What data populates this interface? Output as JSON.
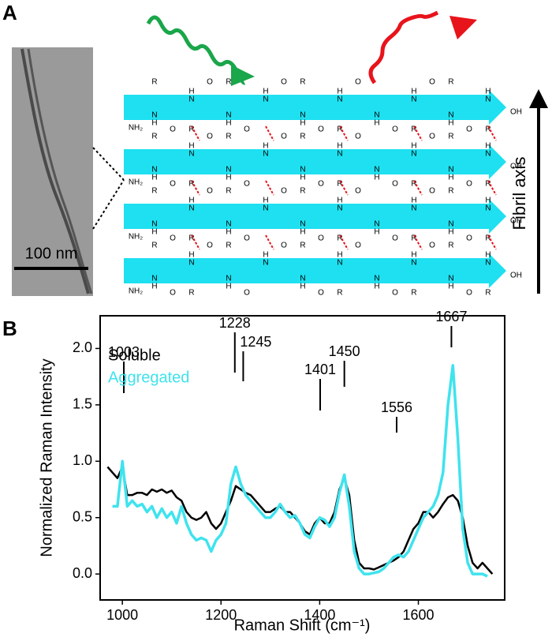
{
  "panel_labels": [
    "A",
    "B"
  ],
  "panel_a": {
    "scale_bar": "100 nm",
    "axis_label": "Fibril axis",
    "atoms": {
      "carbonyl": "O",
      "side_chain": "R",
      "amide_h": "H",
      "amide_n": "N",
      "n_terminus": "NH₂",
      "c_terminus": "OH"
    }
  },
  "chart_data": {
    "type": "line",
    "xlabel": "Raman Shift (cm⁻¹)",
    "ylabel": "Normalized Raman Intensity",
    "x": [
      970,
      980,
      990,
      1000,
      1010,
      1020,
      1030,
      1040,
      1050,
      1060,
      1070,
      1080,
      1090,
      1100,
      1110,
      1120,
      1130,
      1140,
      1150,
      1160,
      1170,
      1180,
      1190,
      1200,
      1210,
      1220,
      1230,
      1240,
      1250,
      1260,
      1270,
      1280,
      1290,
      1300,
      1310,
      1320,
      1330,
      1340,
      1350,
      1360,
      1370,
      1380,
      1390,
      1400,
      1410,
      1420,
      1430,
      1440,
      1450,
      1460,
      1470,
      1480,
      1490,
      1500,
      1510,
      1520,
      1530,
      1540,
      1550,
      1560,
      1570,
      1580,
      1590,
      1600,
      1610,
      1620,
      1630,
      1640,
      1650,
      1660,
      1670,
      1680,
      1690,
      1700,
      1710,
      1720,
      1730,
      1740,
      1750
    ],
    "series": [
      {
        "name": "Soluble",
        "color": "#000000",
        "values": [
          0.95,
          0.9,
          0.85,
          0.95,
          0.7,
          0.7,
          0.72,
          0.72,
          0.7,
          0.75,
          0.73,
          0.75,
          0.72,
          0.74,
          0.68,
          0.65,
          0.55,
          0.5,
          0.48,
          0.5,
          0.55,
          0.45,
          0.4,
          0.45,
          0.55,
          0.65,
          0.78,
          0.75,
          0.72,
          0.7,
          0.65,
          0.6,
          0.55,
          0.55,
          0.58,
          0.6,
          0.55,
          0.55,
          0.5,
          0.45,
          0.38,
          0.35,
          0.45,
          0.5,
          0.45,
          0.45,
          0.55,
          0.75,
          0.85,
          0.7,
          0.3,
          0.1,
          0.05,
          0.05,
          0.04,
          0.06,
          0.08,
          0.1,
          0.12,
          0.15,
          0.2,
          0.3,
          0.4,
          0.45,
          0.55,
          0.55,
          0.5,
          0.55,
          0.62,
          0.68,
          0.7,
          0.65,
          0.5,
          0.25,
          0.1,
          0.05,
          0.1,
          0.05,
          0.0
        ]
      },
      {
        "name": "Aggregated",
        "color": "#3fe3ee",
        "values": [
          null,
          0.6,
          0.6,
          1.0,
          0.6,
          0.65,
          0.6,
          0.62,
          0.55,
          0.6,
          0.5,
          0.58,
          0.5,
          0.55,
          0.45,
          0.6,
          0.45,
          0.35,
          0.3,
          0.32,
          0.3,
          0.2,
          0.3,
          0.35,
          0.45,
          0.8,
          0.95,
          0.8,
          0.7,
          0.65,
          0.6,
          0.55,
          0.5,
          0.5,
          0.55,
          0.62,
          0.55,
          0.5,
          0.52,
          0.45,
          0.35,
          0.32,
          0.42,
          0.5,
          0.48,
          0.42,
          0.5,
          0.72,
          0.88,
          0.6,
          0.2,
          0.05,
          0.0,
          0.0,
          0.01,
          0.02,
          0.05,
          0.1,
          0.15,
          0.17,
          0.15,
          0.2,
          0.3,
          0.4,
          0.5,
          0.55,
          0.6,
          0.7,
          0.9,
          1.5,
          1.85,
          1.2,
          0.4,
          0.1,
          0.0,
          0.0,
          0.0,
          -0.02,
          null
        ]
      }
    ],
    "peak_labels": [
      1003,
      1228,
      1245,
      1401,
      1450,
      1556,
      1667
    ],
    "xlim": [
      955,
      1775
    ],
    "xticks": [
      1000,
      1200,
      1400,
      1600
    ],
    "ylim": [
      -0.23,
      2.29
    ],
    "yticks": [
      {
        "value": 0,
        "label": "0.0"
      },
      {
        "value": 0.5,
        "label": "0.5"
      },
      {
        "value": 1,
        "label": "1.0"
      },
      {
        "value": 1.5,
        "label": "1.5"
      },
      {
        "value": 2,
        "label": "2.0"
      }
    ],
    "legend": "upper left"
  }
}
